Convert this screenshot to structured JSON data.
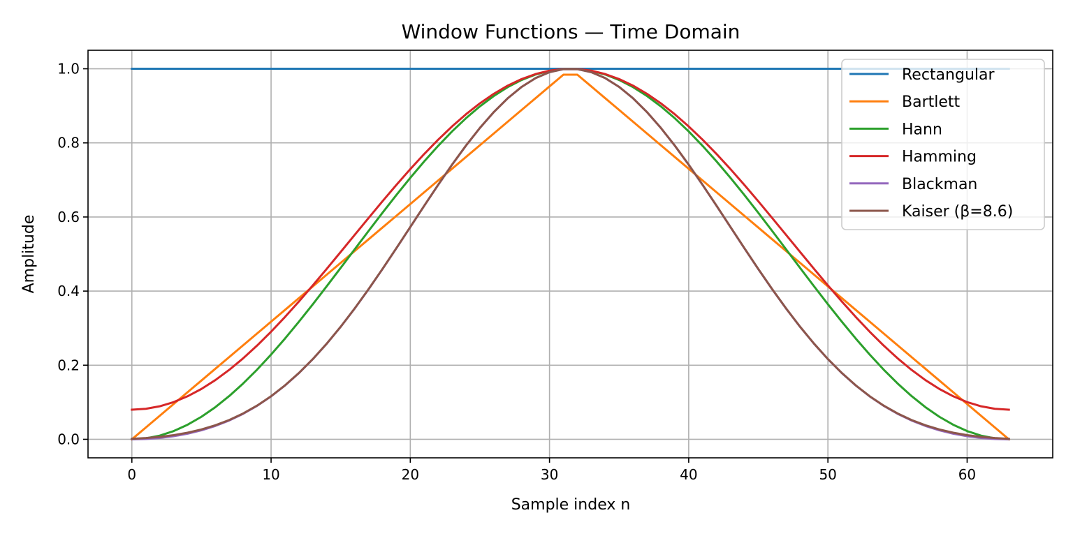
{
  "chart_data": {
    "type": "line",
    "title": "Window Functions — Time Domain",
    "xlabel": "Sample index n",
    "ylabel": "Amplitude",
    "xlim": [
      -3.15,
      66.15
    ],
    "ylim": [
      -0.05,
      1.05
    ],
    "x_ticks": [
      0,
      10,
      20,
      30,
      40,
      50,
      60
    ],
    "y_ticks": [
      0.0,
      0.2,
      0.4,
      0.6,
      0.8,
      1.0
    ],
    "x_tick_labels": [
      "0",
      "10",
      "20",
      "30",
      "40",
      "50",
      "60"
    ],
    "y_tick_labels": [
      "0.0",
      "0.2",
      "0.4",
      "0.6",
      "0.8",
      "1.0"
    ],
    "grid": true,
    "legend_position": "top-right",
    "n_samples": 64,
    "series": [
      {
        "name": "Rectangular",
        "window": "rectangular",
        "color": "#1f77b4"
      },
      {
        "name": "Bartlett",
        "window": "bartlett",
        "color": "#ff7f0e"
      },
      {
        "name": "Hann",
        "window": "hann",
        "color": "#2ca02c"
      },
      {
        "name": "Hamming",
        "window": "hamming",
        "color": "#d62728"
      },
      {
        "name": "Blackman",
        "window": "blackman",
        "color": "#9467bd"
      },
      {
        "name": "Kaiser (β=8.6)",
        "window": "kaiser",
        "beta": 8.6,
        "color": "#8c564b"
      }
    ]
  }
}
